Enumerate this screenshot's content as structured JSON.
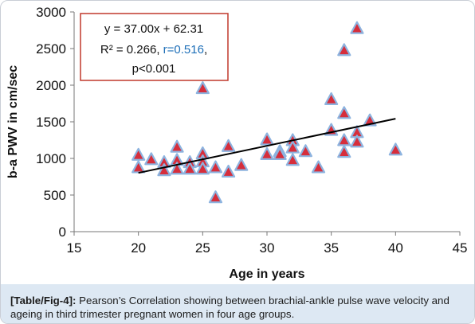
{
  "chart_data": {
    "type": "scatter",
    "xlabel": "Age in years",
    "ylabel": "b-a PWV in cm/sec",
    "xlim": [
      15,
      45
    ],
    "ylim": [
      0,
      3000
    ],
    "xticks": [
      15,
      20,
      25,
      30,
      35,
      40,
      45
    ],
    "yticks": [
      0,
      500,
      1000,
      1500,
      2000,
      2500,
      3000
    ],
    "grid": false,
    "marker": "triangle",
    "marker_fill": "#d62e3c",
    "marker_stroke": "#8db3df",
    "trendline_color": "#000000",
    "annotation_color": "#1e6fb8",
    "trendline": {
      "slope": 37.0,
      "intercept": 62.31,
      "x_range": [
        20,
        40
      ]
    },
    "annotation": {
      "line1": "y = 37.00x + 62.31",
      "line2_prefix": "R² = 0.266, ",
      "line2_highlight": "r=0.516",
      "line2_suffix": ",",
      "line3": "p<0.001"
    },
    "points": [
      {
        "x": 20,
        "y": 1050
      },
      {
        "x": 20,
        "y": 880
      },
      {
        "x": 21,
        "y": 990
      },
      {
        "x": 22,
        "y": 950
      },
      {
        "x": 22,
        "y": 840
      },
      {
        "x": 23,
        "y": 1160
      },
      {
        "x": 23,
        "y": 980
      },
      {
        "x": 23,
        "y": 860
      },
      {
        "x": 24,
        "y": 950
      },
      {
        "x": 24,
        "y": 860
      },
      {
        "x": 25,
        "y": 1960
      },
      {
        "x": 25,
        "y": 1070
      },
      {
        "x": 25,
        "y": 960
      },
      {
        "x": 25,
        "y": 860
      },
      {
        "x": 26,
        "y": 880
      },
      {
        "x": 26,
        "y": 470
      },
      {
        "x": 27,
        "y": 1170
      },
      {
        "x": 27,
        "y": 820
      },
      {
        "x": 28,
        "y": 910
      },
      {
        "x": 30,
        "y": 1260
      },
      {
        "x": 30,
        "y": 1060
      },
      {
        "x": 31,
        "y": 1100
      },
      {
        "x": 31,
        "y": 1060
      },
      {
        "x": 32,
        "y": 1250
      },
      {
        "x": 32,
        "y": 1150
      },
      {
        "x": 32,
        "y": 980
      },
      {
        "x": 33,
        "y": 1100
      },
      {
        "x": 34,
        "y": 880
      },
      {
        "x": 35,
        "y": 1810
      },
      {
        "x": 35,
        "y": 1390
      },
      {
        "x": 36,
        "y": 2480
      },
      {
        "x": 36,
        "y": 1620
      },
      {
        "x": 36,
        "y": 1250
      },
      {
        "x": 36,
        "y": 1090
      },
      {
        "x": 37,
        "y": 2780
      },
      {
        "x": 37,
        "y": 1360
      },
      {
        "x": 37,
        "y": 1230
      },
      {
        "x": 38,
        "y": 1520
      },
      {
        "x": 40,
        "y": 1120
      }
    ]
  },
  "caption": {
    "tag": "[Table/Fig-4]:",
    "text": " Pearson’s Correlation showing between brachial-ankle pulse wave velocity and ageing in third trimester pregnant women in four age groups."
  }
}
